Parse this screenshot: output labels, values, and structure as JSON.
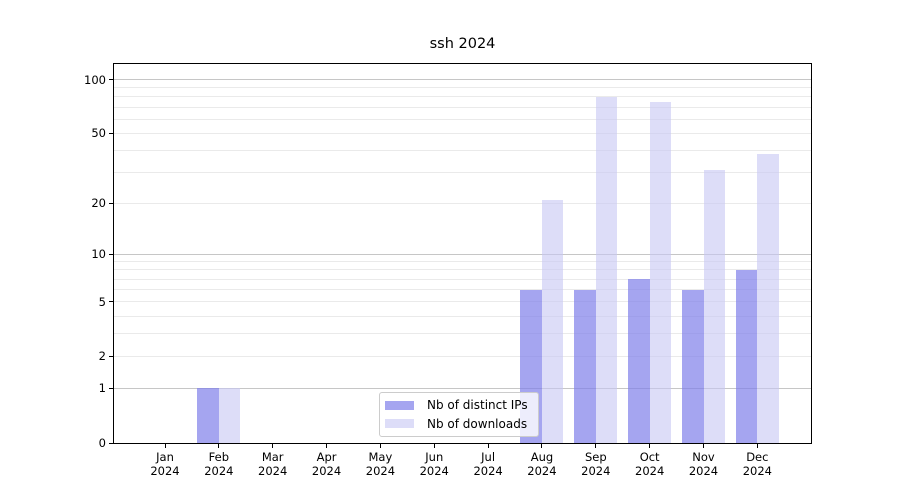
{
  "title": "ssh 2024",
  "chart_data": {
    "type": "bar",
    "title": "ssh 2024",
    "categories": [
      "Jan",
      "Feb",
      "Mar",
      "Apr",
      "May",
      "Jun",
      "Jul",
      "Aug",
      "Sep",
      "Oct",
      "Nov",
      "Dec"
    ],
    "category_year": "2024",
    "series": [
      {
        "name": "Nb of distinct IPs",
        "color": "#7f7fe9",
        "alpha": 0.7,
        "values": [
          0,
          1,
          0,
          0,
          0,
          0,
          0,
          6,
          6,
          7,
          6,
          8
        ]
      },
      {
        "name": "Nb of downloads",
        "color": "#c6c6f4",
        "alpha": 0.6,
        "values": [
          0,
          1,
          0,
          0,
          0,
          0,
          0,
          21,
          80,
          75,
          31,
          38
        ]
      }
    ],
    "yscale": "log1p",
    "ylim": [
      0,
      122
    ],
    "yticks": [
      0,
      1,
      2,
      5,
      10,
      20,
      50,
      100
    ],
    "grid_major": [
      1,
      10,
      100
    ],
    "grid_minor": [
      2,
      3,
      4,
      5,
      6,
      7,
      8,
      9,
      20,
      30,
      40,
      50,
      60,
      70,
      80,
      90
    ],
    "grid_on": true,
    "legend_position": "lower-center",
    "colors": {
      "grid_major": "#c6c6c6",
      "grid_minor": "#eaeaea",
      "axis": "#000000",
      "text": "#000000",
      "legend_border": "#cccccc"
    }
  }
}
